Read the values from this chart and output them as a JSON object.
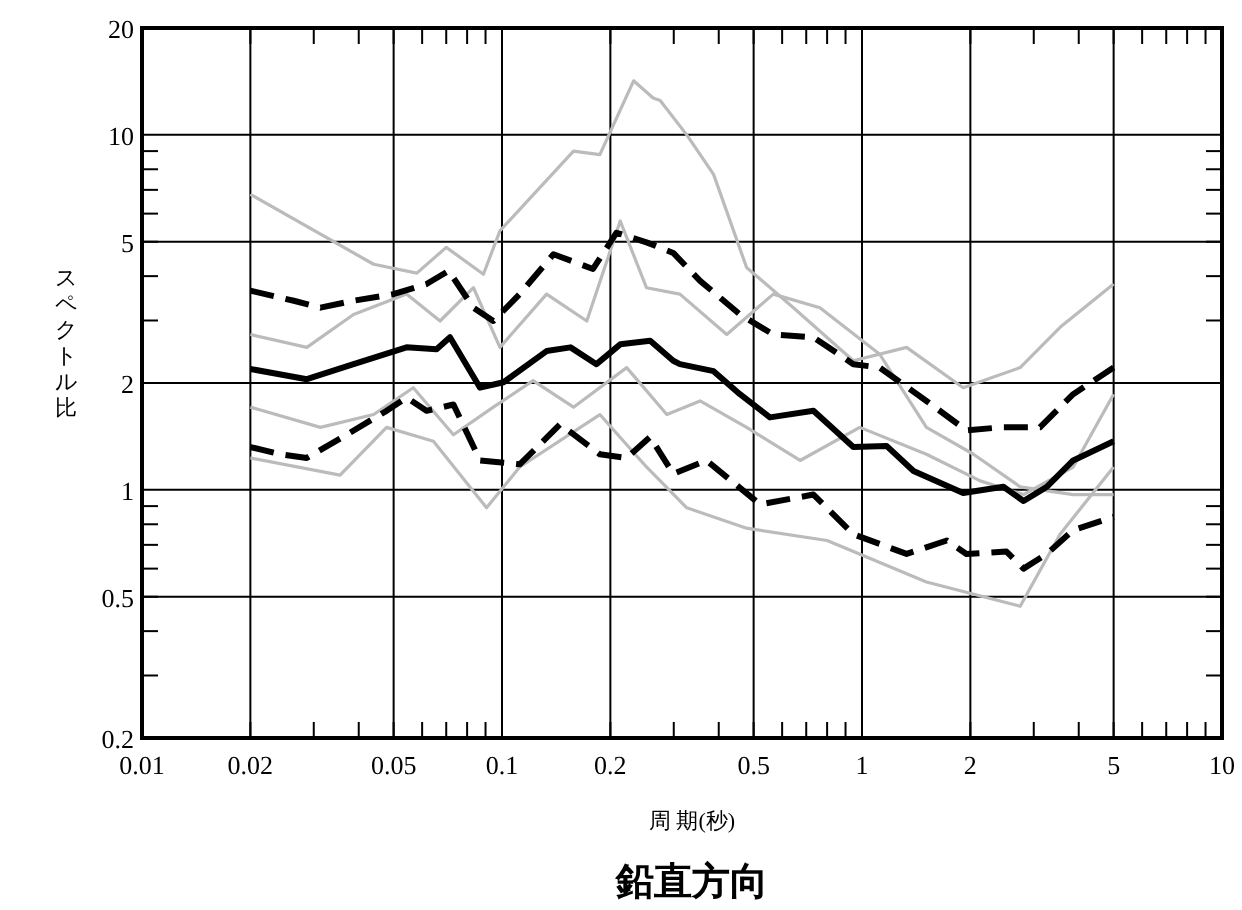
{
  "chart_data": {
    "type": "line",
    "title": "鉛直方向",
    "xlabel": "周 期(秒)",
    "ylabel": "スペクトル比",
    "log": "xy",
    "grid": true,
    "xlim": [
      0.01,
      10
    ],
    "ylim": [
      0.2,
      20
    ],
    "xticks": [
      0.01,
      0.02,
      0.05,
      0.1,
      0.2,
      0.5,
      1,
      2,
      5,
      10
    ],
    "yticks": [
      0.2,
      0.5,
      1,
      2,
      5,
      10,
      20
    ],
    "series": [
      {
        "color": "#bbbbbb",
        "line_style": "solid",
        "x": [
          0.02,
          0.044,
          0.058,
          0.07,
          0.0888,
          0.0987,
          0.158,
          0.187,
          0.232,
          0.263,
          0.275,
          0.326,
          0.387,
          0.478,
          0.645,
          0.946,
          1.33,
          1.91,
          2.75,
          3.55,
          5
        ],
        "values": [
          6.8,
          4.32,
          4.08,
          4.82,
          4.05,
          5.37,
          9.0,
          8.8,
          14.2,
          12.7,
          12.5,
          10.0,
          7.74,
          4.23,
          3.26,
          2.31,
          2.52,
          1.94,
          2.21,
          2.87,
          3.8
        ]
      },
      {
        "color": "#bbbbbb",
        "line_style": "solid",
        "x": [
          0.02,
          0.0355,
          0.0478,
          0.0645,
          0.0906,
          0.112,
          0.187,
          0.252,
          0.326,
          0.478,
          0.8,
          1.51,
          2.75,
          3.55,
          5
        ],
        "values": [
          1.23,
          1.1,
          1.5,
          1.37,
          0.89,
          1.16,
          1.63,
          1.16,
          0.89,
          0.78,
          0.72,
          0.55,
          0.47,
          0.75,
          1.16
        ]
      },
      {
        "color": "#bbbbbb",
        "line_style": "solid",
        "x": [
          0.02,
          0.0287,
          0.0387,
          0.0543,
          0.0673,
          0.0833,
          0.0987,
          0.133,
          0.172,
          0.213,
          0.252,
          0.312,
          0.421,
          0.567,
          0.764,
          1.12,
          1.51,
          2.04,
          2.75,
          3.86,
          5
        ],
        "values": [
          2.74,
          2.52,
          3.12,
          3.56,
          2.99,
          3.71,
          2.52,
          3.56,
          2.99,
          5.72,
          3.71,
          3.56,
          2.74,
          3.56,
          3.26,
          2.41,
          1.5,
          1.26,
          1.02,
          0.97,
          0.97
        ]
      },
      {
        "color": "#bbbbbb",
        "line_style": "solid",
        "x": [
          0.02,
          0.0313,
          0.044,
          0.0567,
          0.0733,
          0.0946,
          0.122,
          0.158,
          0.222,
          0.287,
          0.355,
          0.478,
          0.673,
          0.986,
          1.51,
          2.13,
          2.81,
          3.86,
          5
        ],
        "values": [
          1.71,
          1.5,
          1.63,
          1.94,
          1.43,
          1.71,
          2.03,
          1.71,
          2.21,
          1.63,
          1.78,
          1.5,
          1.21,
          1.5,
          1.26,
          1.06,
          0.97,
          1.16,
          1.86
        ]
      },
      {
        "color": "#000000",
        "line_style": "solid",
        "x": [
          0.02,
          0.0287,
          0.0387,
          0.0543,
          0.0658,
          0.0717,
          0.0869,
          0.101,
          0.133,
          0.155,
          0.183,
          0.213,
          0.258,
          0.299,
          0.312,
          0.387,
          0.458,
          0.555,
          0.733,
          0.946,
          1.17,
          1.39,
          1.91,
          2.47,
          2.81,
          3.26,
          3.86,
          5
        ],
        "values": [
          2.19,
          2.05,
          2.26,
          2.52,
          2.49,
          2.69,
          1.94,
          2.01,
          2.46,
          2.52,
          2.26,
          2.57,
          2.63,
          2.31,
          2.26,
          2.16,
          1.86,
          1.6,
          1.67,
          1.32,
          1.33,
          1.13,
          0.98,
          1.02,
          0.93,
          1.02,
          1.21,
          1.37
        ]
      },
      {
        "color": "#000000",
        "line_style": "dashed",
        "x": [
          0.02,
          0.0264,
          0.0313,
          0.0387,
          0.0499,
          0.0617,
          0.0711,
          0.0833,
          0.0946,
          0.112,
          0.139,
          0.179,
          0.208,
          0.252,
          0.299,
          0.355,
          0.458,
          0.567,
          0.733,
          0.946,
          1.12,
          1.51,
          1.95,
          2.42,
          3.12,
          3.86,
          5
        ],
        "values": [
          3.64,
          3.41,
          3.26,
          3.41,
          3.56,
          3.8,
          4.14,
          3.26,
          2.99,
          3.56,
          4.61,
          4.19,
          5.3,
          4.98,
          4.65,
          3.88,
          3.12,
          2.74,
          2.69,
          2.26,
          2.21,
          1.78,
          1.47,
          1.5,
          1.5,
          1.86,
          2.21
        ]
      },
      {
        "color": "#000000",
        "line_style": "dashed",
        "x": [
          0.02,
          0.0242,
          0.0287,
          0.037,
          0.0478,
          0.0543,
          0.0617,
          0.0733,
          0.0869,
          0.112,
          0.145,
          0.187,
          0.222,
          0.258,
          0.299,
          0.37,
          0.521,
          0.733,
          0.946,
          1.33,
          1.72,
          1.95,
          2.52,
          2.81,
          3.26,
          3.86,
          5
        ],
        "values": [
          1.32,
          1.26,
          1.23,
          1.43,
          1.67,
          1.82,
          1.67,
          1.74,
          1.21,
          1.18,
          1.53,
          1.26,
          1.23,
          1.41,
          1.11,
          1.21,
          0.91,
          0.97,
          0.75,
          0.66,
          0.72,
          0.66,
          0.67,
          0.6,
          0.66,
          0.77,
          0.84
        ]
      }
    ]
  }
}
